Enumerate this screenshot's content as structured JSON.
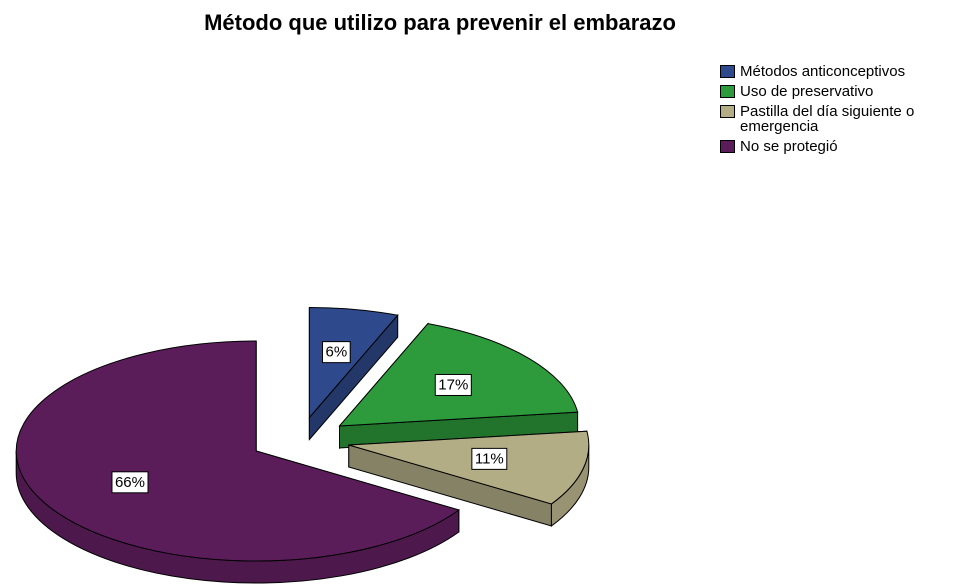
{
  "chart_data": {
    "type": "pie3d",
    "title": "Método que utilizo para prevenir el embarazo",
    "categories": [
      "Métodos anticonceptivos",
      "Uso de preservativo",
      "Pastilla del día siguiente o emergencia",
      "No se protegió"
    ],
    "values": [
      6,
      17,
      11,
      66
    ],
    "value_labels": [
      "6%",
      "17%",
      "11%",
      "66%"
    ],
    "colors": [
      "#2e4a8c",
      "#2d9a3c",
      "#b3ad86",
      "#5b1d5a"
    ],
    "legend": "top-right"
  }
}
